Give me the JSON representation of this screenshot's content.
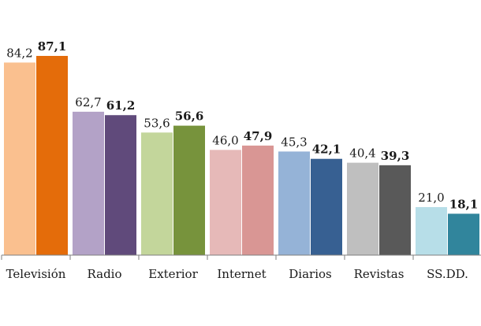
{
  "chart_data": {
    "type": "bar",
    "title": "",
    "xlabel": "",
    "ylabel": "",
    "ylim": [
      0,
      90
    ],
    "grid": false,
    "legend": "none",
    "categories": [
      "Televisión",
      "Radio",
      "Exterior",
      "Internet",
      "Diarios",
      "Revistas",
      "SS.DD."
    ],
    "series": [
      {
        "values": [
          84.2,
          62.7,
          53.6,
          46.0,
          45.3,
          40.4,
          21.0
        ],
        "labels": [
          "84,2",
          "62,7",
          "53,6",
          "46,0",
          "45,3",
          "40,4",
          "21,0"
        ],
        "label_weight": "normal"
      },
      {
        "values": [
          87.1,
          61.2,
          56.6,
          47.9,
          42.1,
          39.3,
          18.1
        ],
        "labels": [
          "87,1",
          "61,2",
          "56,6",
          "47,9",
          "42,1",
          "39,3",
          "18,1"
        ],
        "label_weight": "bold"
      }
    ],
    "colors": {
      "series_0": [
        "#fac08f",
        "#b3a2c7",
        "#c3d69b",
        "#e6b9b8",
        "#95b3d7",
        "#bfbfbf",
        "#b7dee8"
      ],
      "series_1": [
        "#e46c0a",
        "#604a7b",
        "#77933c",
        "#d99694",
        "#376092",
        "#595959",
        "#31859c"
      ],
      "axis": "#7f7f7f"
    }
  }
}
